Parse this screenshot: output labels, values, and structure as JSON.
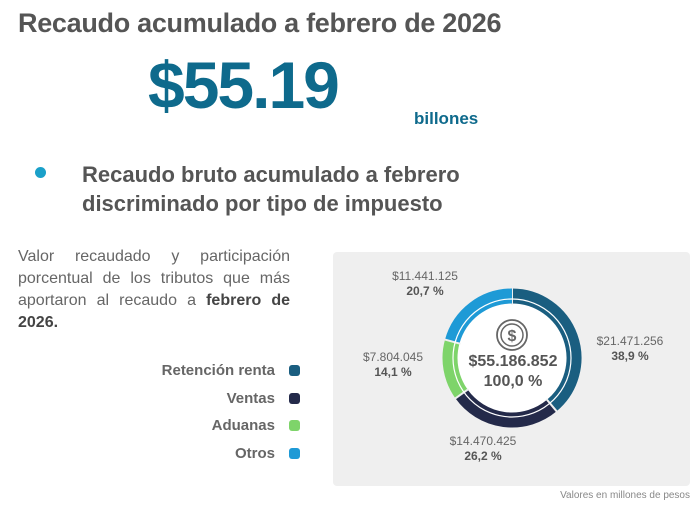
{
  "header": {
    "title": "Recaudo acumulado a febrero de 2026",
    "big_number": "$55.19",
    "big_number_unit": "billones"
  },
  "section": {
    "subtitle_line1": "Recaudo bruto acumulado a febrero",
    "subtitle_line2": "discriminado por tipo de impuesto",
    "bullet_color": "#1aa0c9",
    "description": "Valor recaudado y participación porcentual de los tributos que más aportaron al recaudo a ",
    "description_bold": "febrero de 2026."
  },
  "legend": [
    {
      "label": "Retención renta",
      "color": "#1a5e80"
    },
    {
      "label": "Ventas",
      "color": "#242a4a"
    },
    {
      "label": "Aduanas",
      "color": "#7ed46a"
    },
    {
      "label": "Otros",
      "color": "#1e9ad6"
    }
  ],
  "donut_center": {
    "icon": "dollar-coin-icon",
    "total": "$55.186.852",
    "percent": "100,0 %"
  },
  "footnote": "Valores en millones de pesos",
  "chart_data": {
    "type": "pie",
    "title": "Recaudo bruto acumulado a febrero discriminado por tipo de impuesto",
    "unit": "millones de pesos",
    "categories": [
      "Retención renta",
      "Ventas",
      "Aduanas",
      "Otros"
    ],
    "values": [
      21471256,
      14470425,
      7804045,
      11441125
    ],
    "value_labels": [
      "$21.471.256",
      "$14.470.425",
      "$7.804.045",
      "$11.441.125"
    ],
    "percentages": [
      38.9,
      26.2,
      14.1,
      20.7
    ],
    "percentage_labels": [
      "38,9 %",
      "26,2 %",
      "14,1 %",
      "20,7 %"
    ],
    "colors": [
      "#1a5e80",
      "#242a4a",
      "#7ed46a",
      "#1e9ad6"
    ],
    "total": 55186852,
    "total_label": "$55.186.852",
    "donut": true,
    "legend_position": "left"
  }
}
